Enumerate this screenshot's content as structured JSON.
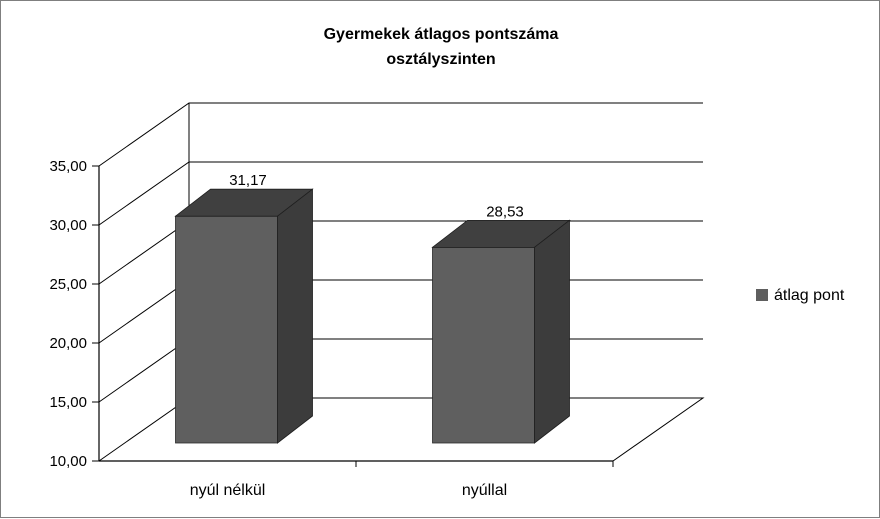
{
  "chart_data": {
    "type": "bar",
    "title_lines": [
      "Gyermekek átlagos pontszáma",
      "osztályszinten"
    ],
    "categories": [
      "nyúl nélkül",
      "nyúllal"
    ],
    "series": [
      {
        "name": "átlag pont",
        "values": [
          31.17,
          28.53
        ],
        "color": "#5f5f5f"
      }
    ],
    "data_labels": [
      "31,17",
      "28,53"
    ],
    "y_ticks": [
      "10,00",
      "15,00",
      "20,00",
      "25,00",
      "30,00",
      "35,00"
    ],
    "ylim": [
      10,
      35
    ],
    "grid": true,
    "legend_position": "right",
    "style": "3d-column"
  }
}
